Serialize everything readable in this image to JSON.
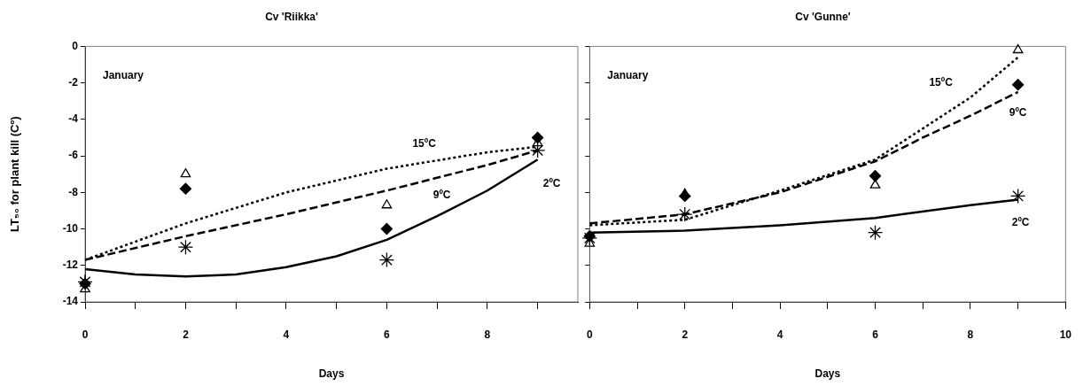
{
  "chart_data": [
    {
      "type": "scatter",
      "title": "Cv 'Riikka'",
      "xlabel": "Days",
      "ylabel": "LT₅₀ for plant kill (Cº)",
      "x": [
        0,
        2,
        6,
        9
      ],
      "xlim": [
        0,
        9.8
      ],
      "ylim": [
        -14,
        0
      ],
      "xticks": [
        0,
        {
          "value": 1,
          "label": null
        },
        2,
        {
          "value": 3,
          "label": null
        },
        4,
        {
          "value": 5,
          "label": null
        },
        6,
        {
          "value": 7,
          "label": null
        },
        8,
        {
          "value": 9,
          "label": null
        }
      ],
      "yticks": [
        0,
        -2,
        -4,
        -6,
        -8,
        -10,
        -12,
        -14
      ],
      "series": [
        {
          "type": "line",
          "name": "15ºC",
          "color": "#000000",
          "line_style": "dotted",
          "marker": "none",
          "x": [
            0,
            2,
            4,
            6,
            8,
            9
          ],
          "values": [
            -11.7,
            -9.7,
            -8.0,
            -6.7,
            -5.8,
            -5.5
          ]
        },
        {
          "type": "line",
          "name": "9ºC",
          "color": "#000000",
          "line_style": "dashed",
          "marker": "none",
          "x": [
            0,
            2,
            4,
            6,
            8,
            9
          ],
          "values": [
            -11.7,
            -10.4,
            -9.2,
            -7.9,
            -6.5,
            -5.7
          ]
        },
        {
          "type": "line",
          "name": "2ºC",
          "color": "#000000",
          "line_style": "solid",
          "marker": "none",
          "x": [
            0,
            1,
            2,
            3,
            4,
            5,
            6,
            7,
            8,
            9
          ],
          "values": [
            -12.2,
            -12.5,
            -12.6,
            -12.5,
            -12.1,
            -11.5,
            -10.6,
            -9.3,
            -7.9,
            -6.2
          ]
        },
        {
          "color": "#000000",
          "marker": "triangle",
          "values": [
            -13.3,
            -7.0,
            -8.7,
            -5.3
          ]
        },
        {
          "color": "#000000",
          "marker": "diamond",
          "values": [
            -13.0,
            -7.8,
            -10.0,
            -5.0
          ]
        },
        {
          "color": "#000000",
          "marker": "cross",
          "values": [
            -12.9,
            -11.0,
            -11.7,
            -5.7
          ]
        }
      ],
      "annotations": [
        "January"
      ]
    },
    {
      "type": "scatter",
      "title": "Cv 'Gunne'",
      "xlabel": "Days",
      "tick_labels": "x",
      "x": [
        0,
        2,
        6,
        9
      ],
      "xlim": [
        0,
        10
      ],
      "ylim": [
        -14,
        0
      ],
      "xticks": [
        0,
        {
          "value": 1,
          "label": null
        },
        2,
        {
          "value": 3,
          "label": null
        },
        4,
        {
          "value": 5,
          "label": null
        },
        6,
        {
          "value": 7,
          "label": null
        },
        8,
        {
          "value": 9,
          "label": null
        },
        10
      ],
      "yticks": [
        0,
        -2,
        -4,
        -6,
        -8,
        -10,
        -12,
        -14
      ],
      "series": [
        {
          "type": "line",
          "name": "15ºC",
          "color": "#000000",
          "line_style": "dotted",
          "marker": "none",
          "x": [
            0,
            2,
            4,
            6,
            8,
            9
          ],
          "values": [
            -9.8,
            -9.5,
            -7.9,
            -6.2,
            -2.8,
            -0.6
          ]
        },
        {
          "type": "line",
          "name": "9ºC",
          "color": "#000000",
          "line_style": "dashed",
          "marker": "none",
          "x": [
            0,
            2,
            4,
            6,
            7,
            8,
            9
          ],
          "values": [
            -9.7,
            -9.2,
            -8.0,
            -6.3,
            -5.0,
            -3.8,
            -2.5
          ]
        },
        {
          "type": "line",
          "name": "2ºC",
          "color": "#000000",
          "line_style": "solid",
          "marker": "none",
          "x": [
            0,
            2,
            4,
            6,
            8,
            9
          ],
          "values": [
            -10.2,
            -10.1,
            -9.8,
            -9.4,
            -8.7,
            -8.4
          ]
        },
        {
          "color": "#000000",
          "marker": "triangle",
          "values": [
            -10.8,
            -8.1,
            -7.6,
            -0.2
          ]
        },
        {
          "color": "#000000",
          "marker": "diamond",
          "values": [
            -10.4,
            -8.2,
            -7.1,
            -2.1
          ]
        },
        {
          "color": "#000000",
          "marker": "cross",
          "values": [
            -10.5,
            -9.2,
            -10.2,
            -8.2
          ]
        }
      ],
      "annotations": [
        "January"
      ]
    }
  ]
}
